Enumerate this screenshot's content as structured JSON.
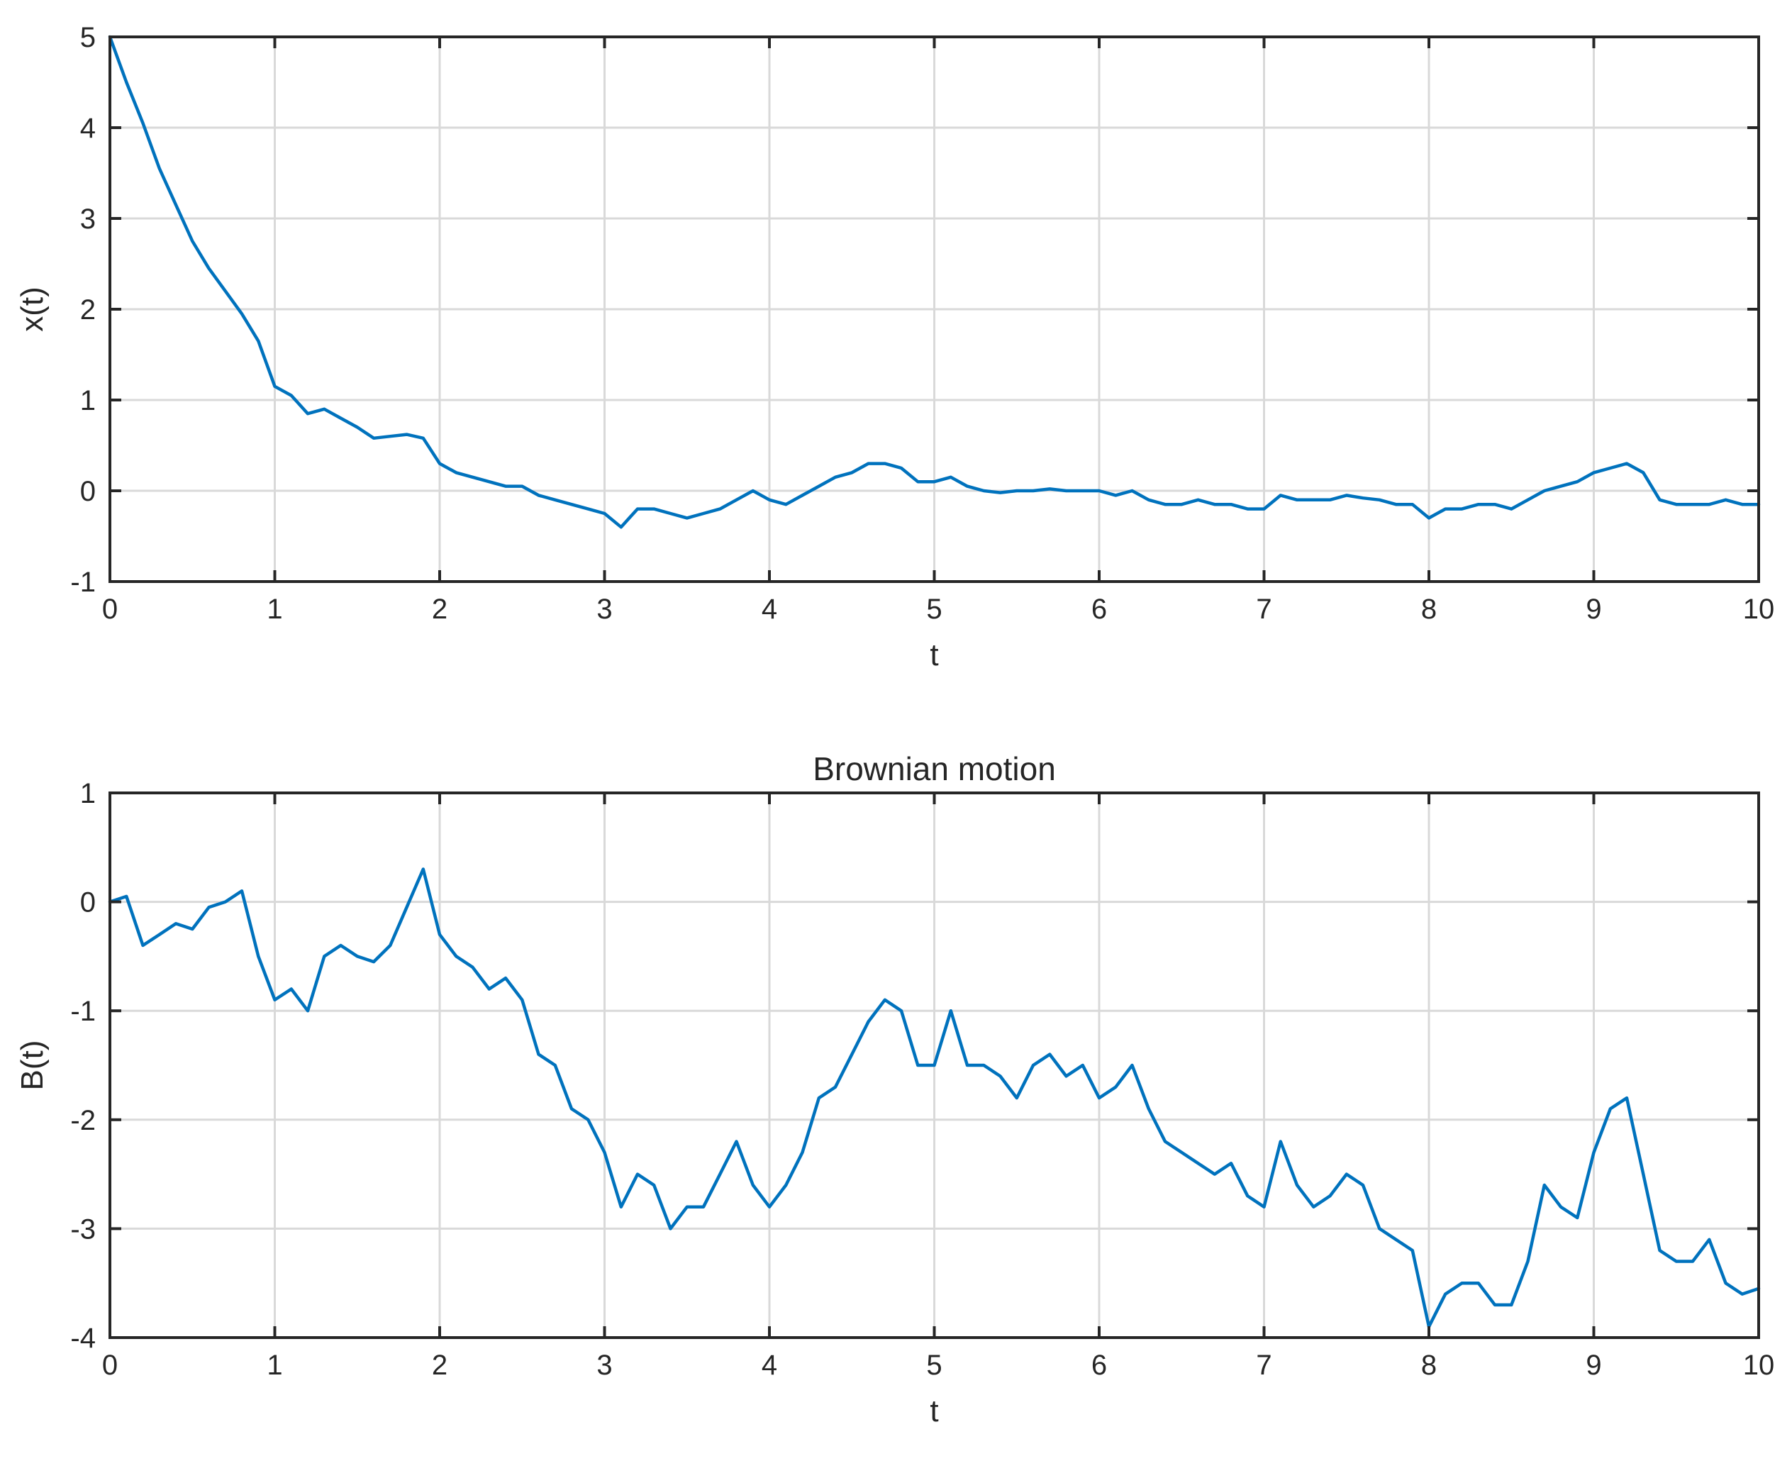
{
  "chart_data": [
    {
      "type": "line",
      "title": "",
      "xlabel": "t",
      "ylabel": "x(t)",
      "xlim": [
        0,
        10
      ],
      "ylim": [
        -1,
        5
      ],
      "xticks": [
        0,
        1,
        2,
        3,
        4,
        5,
        6,
        7,
        8,
        9,
        10
      ],
      "yticks": [
        -1,
        0,
        1,
        2,
        3,
        4,
        5
      ],
      "grid": true,
      "color": "#0072BD",
      "x": [
        0,
        0.1,
        0.2,
        0.3,
        0.4,
        0.5,
        0.6,
        0.7,
        0.8,
        0.9,
        1.0,
        1.1,
        1.2,
        1.3,
        1.4,
        1.5,
        1.6,
        1.7,
        1.8,
        1.9,
        2.0,
        2.1,
        2.2,
        2.3,
        2.4,
        2.5,
        2.6,
        2.7,
        2.8,
        2.9,
        3.0,
        3.1,
        3.2,
        3.3,
        3.4,
        3.5,
        3.6,
        3.7,
        3.8,
        3.9,
        4.0,
        4.1,
        4.2,
        4.3,
        4.4,
        4.5,
        4.6,
        4.7,
        4.8,
        4.9,
        5.0,
        5.1,
        5.2,
        5.3,
        5.4,
        5.5,
        5.6,
        5.7,
        5.8,
        5.9,
        6.0,
        6.1,
        6.2,
        6.3,
        6.4,
        6.5,
        6.6,
        6.7,
        6.8,
        6.9,
        7.0,
        7.1,
        7.2,
        7.3,
        7.4,
        7.5,
        7.6,
        7.7,
        7.8,
        7.9,
        8.0,
        8.1,
        8.2,
        8.3,
        8.4,
        8.5,
        8.6,
        8.7,
        8.8,
        8.9,
        9.0,
        9.1,
        9.2,
        9.3,
        9.4,
        9.5,
        9.6,
        9.7,
        9.8,
        9.9,
        10.0
      ],
      "y": [
        5.0,
        4.5,
        4.05,
        3.55,
        3.15,
        2.75,
        2.45,
        2.2,
        1.95,
        1.65,
        1.15,
        1.05,
        0.85,
        0.9,
        0.8,
        0.7,
        0.58,
        0.6,
        0.62,
        0.58,
        0.3,
        0.2,
        0.15,
        0.1,
        0.05,
        0.05,
        -0.05,
        -0.1,
        -0.15,
        -0.2,
        -0.25,
        -0.4,
        -0.2,
        -0.2,
        -0.25,
        -0.3,
        -0.25,
        -0.2,
        -0.1,
        0.0,
        -0.1,
        -0.15,
        -0.05,
        0.05,
        0.15,
        0.2,
        0.3,
        0.3,
        0.25,
        0.1,
        0.1,
        0.15,
        0.05,
        0.0,
        -0.02,
        0.0,
        0.0,
        0.02,
        0.0,
        0.0,
        0.0,
        -0.05,
        0.0,
        -0.1,
        -0.15,
        -0.15,
        -0.1,
        -0.15,
        -0.15,
        -0.2,
        -0.2,
        -0.05,
        -0.1,
        -0.1,
        -0.1,
        -0.05,
        -0.08,
        -0.1,
        -0.15,
        -0.15,
        -0.3,
        -0.2,
        -0.2,
        -0.15,
        -0.15,
        -0.2,
        -0.1,
        0.0,
        0.05,
        0.1,
        0.2,
        0.25,
        0.3,
        0.2,
        -0.1,
        -0.15,
        -0.15,
        -0.15,
        -0.1,
        -0.15,
        -0.15
      ]
    },
    {
      "type": "line",
      "title": "Brownian motion",
      "xlabel": "t",
      "ylabel": "B(t)",
      "xlim": [
        0,
        10
      ],
      "ylim": [
        -4,
        1
      ],
      "xticks": [
        0,
        1,
        2,
        3,
        4,
        5,
        6,
        7,
        8,
        9,
        10
      ],
      "yticks": [
        -4,
        -3,
        -2,
        -1,
        0,
        1
      ],
      "grid": true,
      "color": "#0072BD",
      "x": [
        0,
        0.1,
        0.2,
        0.3,
        0.4,
        0.5,
        0.6,
        0.7,
        0.8,
        0.9,
        1.0,
        1.1,
        1.2,
        1.3,
        1.4,
        1.5,
        1.6,
        1.7,
        1.8,
        1.9,
        2.0,
        2.1,
        2.2,
        2.3,
        2.4,
        2.5,
        2.6,
        2.7,
        2.8,
        2.9,
        3.0,
        3.1,
        3.2,
        3.3,
        3.4,
        3.5,
        3.6,
        3.7,
        3.8,
        3.9,
        4.0,
        4.1,
        4.2,
        4.3,
        4.4,
        4.5,
        4.6,
        4.7,
        4.8,
        4.9,
        5.0,
        5.1,
        5.2,
        5.3,
        5.4,
        5.5,
        5.6,
        5.7,
        5.8,
        5.9,
        6.0,
        6.1,
        6.2,
        6.3,
        6.4,
        6.5,
        6.6,
        6.7,
        6.8,
        6.9,
        7.0,
        7.1,
        7.2,
        7.3,
        7.4,
        7.5,
        7.6,
        7.7,
        7.8,
        7.9,
        8.0,
        8.1,
        8.2,
        8.3,
        8.4,
        8.5,
        8.6,
        8.7,
        8.8,
        8.9,
        9.0,
        9.1,
        9.2,
        9.3,
        9.4,
        9.5,
        9.6,
        9.7,
        9.8,
        9.9,
        10.0
      ],
      "y": [
        0.0,
        0.05,
        -0.4,
        -0.3,
        -0.2,
        -0.25,
        -0.05,
        0.0,
        0.1,
        -0.5,
        -0.9,
        -0.8,
        -1.0,
        -0.5,
        -0.4,
        -0.5,
        -0.55,
        -0.4,
        -0.05,
        0.3,
        -0.3,
        -0.5,
        -0.6,
        -0.8,
        -0.7,
        -0.9,
        -1.4,
        -1.5,
        -1.9,
        -2.0,
        -2.3,
        -2.8,
        -2.5,
        -2.6,
        -3.0,
        -2.8,
        -2.8,
        -2.5,
        -2.2,
        -2.6,
        -2.8,
        -2.6,
        -2.3,
        -1.8,
        -1.7,
        -1.4,
        -1.1,
        -0.9,
        -1.0,
        -1.5,
        -1.5,
        -1.0,
        -1.5,
        -1.5,
        -1.6,
        -1.8,
        -1.5,
        -1.4,
        -1.6,
        -1.5,
        -1.8,
        -1.7,
        -1.5,
        -1.9,
        -2.2,
        -2.3,
        -2.4,
        -2.5,
        -2.4,
        -2.7,
        -2.8,
        -2.2,
        -2.6,
        -2.8,
        -2.7,
        -2.5,
        -2.6,
        -3.0,
        -3.1,
        -3.2,
        -3.9,
        -3.6,
        -3.5,
        -3.5,
        -3.7,
        -3.7,
        -3.3,
        -2.6,
        -2.8,
        -2.9,
        -2.3,
        -1.9,
        -1.8,
        -2.5,
        -3.2,
        -3.3,
        -3.3,
        -3.1,
        -3.5,
        -3.6,
        -3.55
      ]
    }
  ]
}
